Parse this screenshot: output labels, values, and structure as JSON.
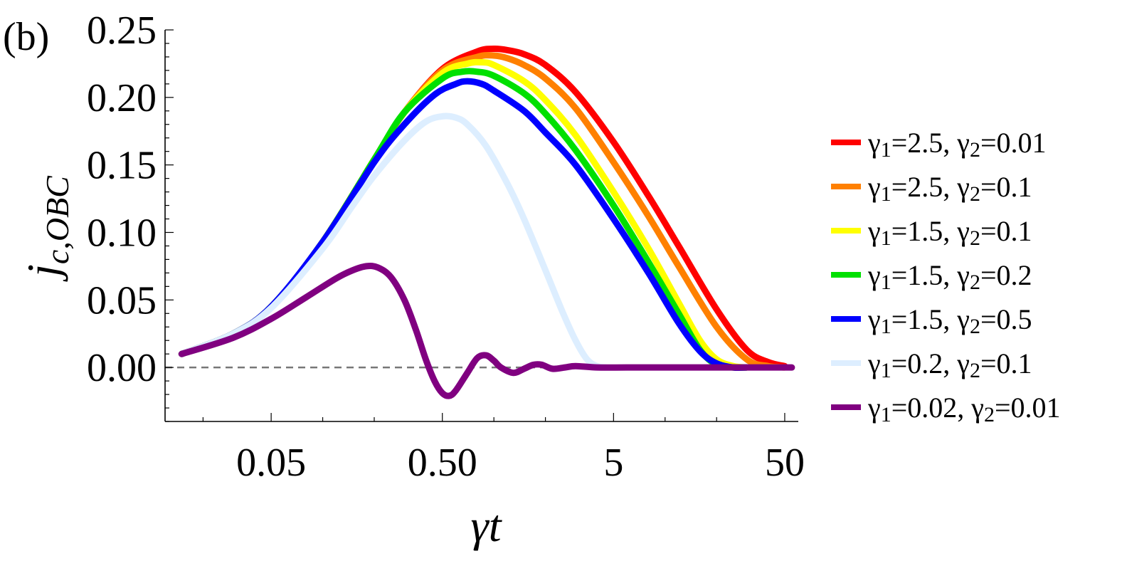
{
  "panel_label": "(b)",
  "chart_data": {
    "type": "line",
    "xscale": "log",
    "xlabel": "γt",
    "ylabel": "j_{c,OBC}",
    "xlim": [
      0.012,
      60
    ],
    "ylim": [
      -0.04,
      0.25
    ],
    "xticks": [
      0.05,
      0.5,
      5,
      50
    ],
    "xtick_labels": [
      "0.05",
      "0.50",
      "5",
      "50"
    ],
    "yticks": [
      0.0,
      0.05,
      0.1,
      0.15,
      0.2,
      0.25
    ],
    "ytick_labels": [
      "0.00",
      "0.05",
      "0.10",
      "0.15",
      "0.20",
      "0.25"
    ],
    "reference_line": {
      "y": 0,
      "style": "dashed",
      "color": "#777777"
    },
    "legend_position": "right",
    "series": [
      {
        "name": "γ1=2.5, γ2=0.01",
        "color": "#ff0000",
        "x": [
          0.015,
          0.03,
          0.05,
          0.1,
          0.2,
          0.3,
          0.5,
          0.8,
          1.0,
          1.2,
          1.5,
          2,
          3,
          5,
          8,
          12,
          20,
          30,
          40,
          50
        ],
        "y": [
          0.01,
          0.025,
          0.045,
          0.093,
          0.154,
          0.189,
          0.221,
          0.234,
          0.236,
          0.235,
          0.232,
          0.224,
          0.204,
          0.167,
          0.127,
          0.09,
          0.043,
          0.013,
          0.004,
          0.001
        ]
      },
      {
        "name": "γ1=2.5, γ2=0.1",
        "color": "#ff8000",
        "x": [
          0.015,
          0.03,
          0.05,
          0.1,
          0.2,
          0.3,
          0.5,
          0.8,
          1.0,
          1.2,
          1.5,
          2,
          3,
          5,
          8,
          12,
          20,
          30,
          40,
          50
        ],
        "y": [
          0.01,
          0.025,
          0.045,
          0.093,
          0.154,
          0.189,
          0.22,
          0.23,
          0.231,
          0.229,
          0.224,
          0.214,
          0.192,
          0.152,
          0.112,
          0.075,
          0.03,
          0.006,
          0.001,
          0.0
        ]
      },
      {
        "name": "γ1=1.5, γ2=0.1",
        "color": "#ffff00",
        "x": [
          0.015,
          0.03,
          0.05,
          0.1,
          0.2,
          0.3,
          0.5,
          0.7,
          0.85,
          1.0,
          1.5,
          2,
          3,
          5,
          8,
          12,
          16,
          20,
          25,
          30
        ],
        "y": [
          0.01,
          0.025,
          0.045,
          0.093,
          0.154,
          0.189,
          0.218,
          0.225,
          0.226,
          0.224,
          0.212,
          0.198,
          0.172,
          0.13,
          0.088,
          0.048,
          0.02,
          0.006,
          0.001,
          0.0
        ]
      },
      {
        "name": "γ1=1.5, γ2=0.2",
        "color": "#00e000",
        "x": [
          0.015,
          0.03,
          0.05,
          0.1,
          0.2,
          0.3,
          0.5,
          0.65,
          0.8,
          1.0,
          1.5,
          2,
          3,
          5,
          8,
          12,
          16,
          20,
          25,
          30
        ],
        "y": [
          0.01,
          0.025,
          0.045,
          0.093,
          0.154,
          0.189,
          0.214,
          0.219,
          0.219,
          0.216,
          0.203,
          0.188,
          0.161,
          0.12,
          0.078,
          0.04,
          0.013,
          0.002,
          0.0,
          0.0
        ]
      },
      {
        "name": "γ1=1.5, γ2=0.5",
        "color": "#0000ff",
        "x": [
          0.015,
          0.03,
          0.05,
          0.1,
          0.2,
          0.3,
          0.45,
          0.6,
          0.7,
          0.85,
          1.0,
          1.5,
          2,
          3,
          5,
          8,
          12,
          16,
          20,
          25,
          30
        ],
        "y": [
          0.01,
          0.025,
          0.045,
          0.093,
          0.152,
          0.18,
          0.202,
          0.21,
          0.212,
          0.21,
          0.205,
          0.19,
          0.174,
          0.15,
          0.11,
          0.07,
          0.033,
          0.012,
          0.003,
          0.0,
          0.0
        ]
      },
      {
        "name": "γ1=0.2, γ2=0.1",
        "color": "#ddeeff",
        "x": [
          0.015,
          0.03,
          0.05,
          0.1,
          0.15,
          0.2,
          0.3,
          0.4,
          0.5,
          0.6,
          0.7,
          0.9,
          1.2,
          1.5,
          2.0,
          2.5,
          3.0,
          3.5,
          4.0,
          4.5
        ],
        "y": [
          0.01,
          0.025,
          0.044,
          0.088,
          0.12,
          0.142,
          0.168,
          0.182,
          0.186,
          0.185,
          0.18,
          0.164,
          0.136,
          0.11,
          0.072,
          0.042,
          0.02,
          0.006,
          0.001,
          0.0
        ]
      },
      {
        "name": "γ1=0.02, γ2=0.01",
        "color": "#800080",
        "x": [
          0.015,
          0.03,
          0.05,
          0.08,
          0.12,
          0.15,
          0.18,
          0.21,
          0.25,
          0.3,
          0.35,
          0.4,
          0.45,
          0.5,
          0.55,
          0.6,
          0.7,
          0.8,
          0.9,
          1.0,
          1.1,
          1.3,
          1.5,
          1.7,
          1.9,
          2.2,
          2.6,
          3,
          4,
          6,
          10,
          20,
          55
        ],
        "y": [
          0.01,
          0.022,
          0.036,
          0.052,
          0.066,
          0.072,
          0.075,
          0.074,
          0.067,
          0.05,
          0.028,
          0.006,
          -0.01,
          -0.019,
          -0.021,
          -0.017,
          -0.004,
          0.007,
          0.009,
          0.005,
          0.0,
          -0.004,
          -0.001,
          0.002,
          0.002,
          -0.001,
          0.0,
          0.001,
          0.0,
          0.0,
          0.0,
          0.0,
          0.0
        ]
      }
    ]
  }
}
